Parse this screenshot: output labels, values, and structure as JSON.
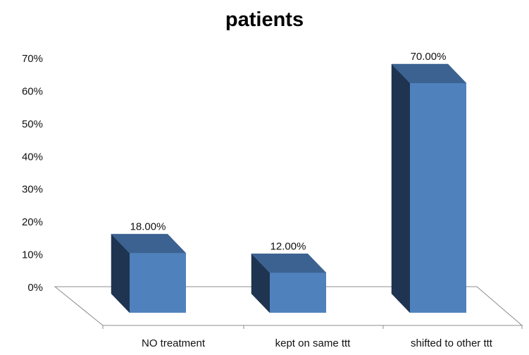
{
  "chart_data": {
    "type": "bar",
    "title": "patients",
    "xlabel": "",
    "ylabel": "",
    "categories": [
      "NO treatment",
      "kept on same ttt",
      "shifted to other ttt"
    ],
    "values": [
      18,
      12,
      70
    ],
    "value_labels": [
      "18.00%",
      "12.00%",
      "70.00%"
    ],
    "ylim": [
      0,
      70
    ],
    "y_ticks": [
      0,
      10,
      20,
      30,
      40,
      50,
      60,
      70
    ],
    "y_tick_labels": [
      "0%",
      "10%",
      "20%",
      "30%",
      "40%",
      "50%",
      "60%",
      "70%"
    ],
    "three_d": true,
    "grid": false,
    "legend": "none",
    "colors": {
      "bar_front": "#4f81bd",
      "bar_side": "#1f3450",
      "bar_top": "#3c6291",
      "axis": "#8c8c8c"
    }
  }
}
